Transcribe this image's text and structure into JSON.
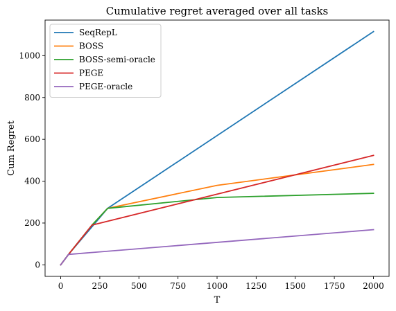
{
  "chart_data": {
    "type": "line",
    "title": "Cumulative regret averaged over all tasks",
    "xlabel": "T",
    "ylabel": "Cum Regret",
    "xlim": [
      -100,
      2100
    ],
    "ylim": [
      -55,
      1170
    ],
    "xticks": [
      0,
      250,
      500,
      750,
      1000,
      1250,
      1500,
      1750,
      2000
    ],
    "yticks": [
      0,
      200,
      400,
      600,
      800,
      1000
    ],
    "legend_position": "top-left",
    "grid": false,
    "series": [
      {
        "name": "SeqRepL",
        "color": "#1f77b4",
        "x": [
          0,
          50,
          300,
          2000
        ],
        "y": [
          0,
          50,
          270,
          1115
        ]
      },
      {
        "name": "BOSS",
        "color": "#ff7f0e",
        "x": [
          0,
          50,
          200,
          300,
          1000,
          2000
        ],
        "y": [
          0,
          50,
          190,
          270,
          380,
          480
        ]
      },
      {
        "name": "BOSS-semi-oracle",
        "color": "#2ca02c",
        "x": [
          0,
          50,
          200,
          300,
          1000,
          2000
        ],
        "y": [
          0,
          50,
          190,
          270,
          322,
          342
        ]
      },
      {
        "name": "PEGE",
        "color": "#d62728",
        "x": [
          0,
          50,
          200,
          2000
        ],
        "y": [
          0,
          50,
          190,
          523
        ]
      },
      {
        "name": "PEGE-oracle",
        "color": "#9467bd",
        "x": [
          0,
          50,
          2000
        ],
        "y": [
          0,
          50,
          168
        ]
      }
    ]
  }
}
